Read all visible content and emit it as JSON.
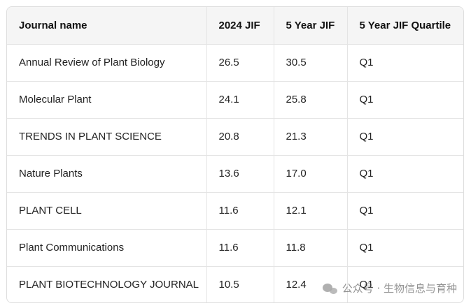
{
  "table": {
    "headers": [
      "Journal name",
      "2024 JIF",
      "5 Year JIF",
      "5 Year JIF Quartile"
    ],
    "rows": [
      [
        "Annual Review of Plant Biology",
        "26.5",
        "30.5",
        "Q1"
      ],
      [
        "Molecular Plant",
        "24.1",
        "25.8",
        "Q1"
      ],
      [
        "TRENDS IN PLANT SCIENCE",
        "20.8",
        "21.3",
        "Q1"
      ],
      [
        "Nature Plants",
        "13.6",
        "17.0",
        "Q1"
      ],
      [
        "PLANT CELL",
        "11.6",
        "12.1",
        "Q1"
      ],
      [
        "Plant Communications",
        "11.6",
        "11.8",
        "Q1"
      ],
      [
        "PLANT BIOTECHNOLOGY JOURNAL",
        "10.5",
        "12.4",
        "Q1"
      ]
    ]
  },
  "watermark": {
    "text": "公众号 · 生物信息与育种",
    "icon": "wechat-icon"
  }
}
